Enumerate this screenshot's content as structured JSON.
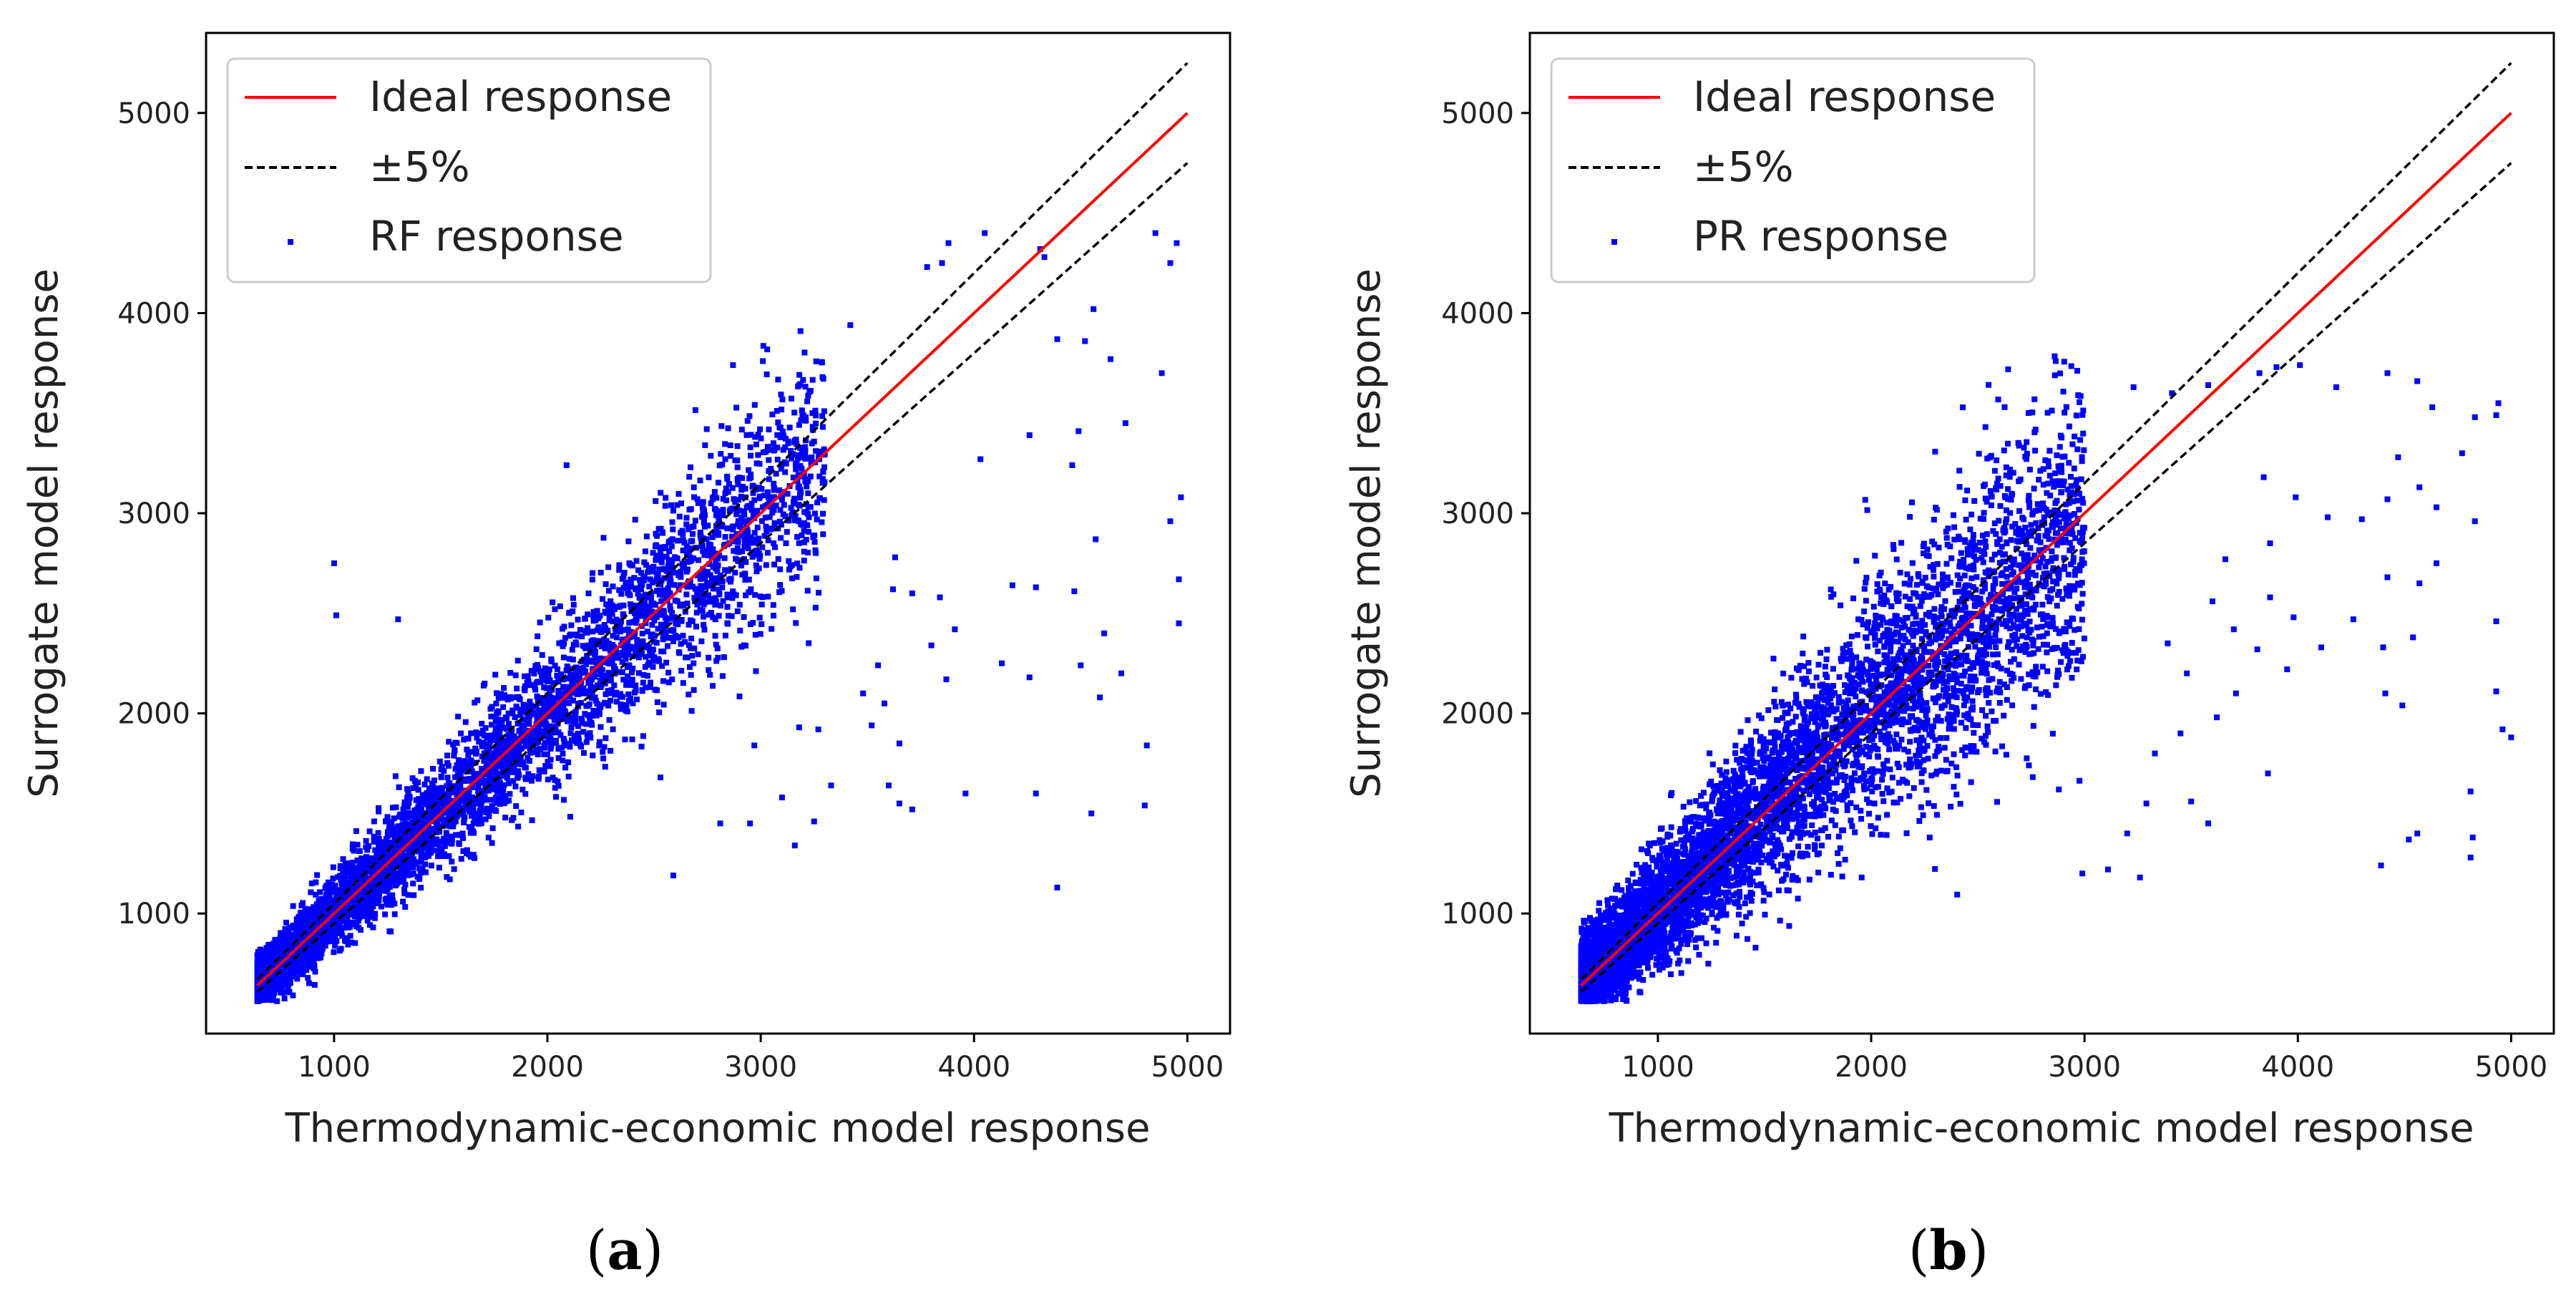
{
  "chart_data": [
    {
      "type": "scatter",
      "panel_label": "a",
      "xlabel": "Thermodynamic-economic model response",
      "ylabel": "Surrogate model response",
      "xlim": [
        400,
        5200
      ],
      "ylim": [
        400,
        5400
      ],
      "xticks": [
        1000,
        2000,
        3000,
        4000,
        5000
      ],
      "yticks": [
        1000,
        2000,
        3000,
        4000,
        5000
      ],
      "grid": false,
      "legend_position": "top-left",
      "legend": [
        "Ideal response",
        "±5%",
        "RF response"
      ],
      "series": [
        {
          "name": "Ideal response",
          "kind": "line",
          "color": "#ff0000",
          "points": [
            [
              640,
              640
            ],
            [
              5000,
              5000
            ]
          ]
        },
        {
          "name": "±5%",
          "kind": "dashed-line",
          "color": "#000000",
          "points": [
            [
              640,
              672
            ],
            [
              5000,
              5250
            ]
          ]
        },
        {
          "name": "±5% lower",
          "kind": "dashed-line",
          "color": "#000000",
          "points": [
            [
              640,
              608
            ],
            [
              5000,
              4750
            ]
          ]
        },
        {
          "name": "RF response",
          "kind": "scatter",
          "color": "#0000ff",
          "cloud": {
            "count": 5200,
            "x_min": 640,
            "x_core_max": 3300,
            "spread_frac": 0.09
          },
          "points": [
            [
              1000,
              2750
            ],
            [
              1010,
              2490
            ],
            [
              1300,
              2470
            ],
            [
              2090,
              3240
            ],
            [
              3010,
              3760
            ],
            [
              2870,
              3740
            ],
            [
              3180,
              3640
            ],
            [
              3420,
              3940
            ],
            [
              3850,
              4250
            ],
            [
              3780,
              4230
            ],
            [
              3880,
              4350
            ],
            [
              4050,
              4400
            ],
            [
              4330,
              4280
            ],
            [
              4310,
              4320
            ],
            [
              4850,
              4400
            ],
            [
              4950,
              4350
            ],
            [
              4920,
              4250
            ],
            [
              4520,
              3860
            ],
            [
              4640,
              3770
            ],
            [
              4560,
              4020
            ],
            [
              4390,
              3870
            ],
            [
              4880,
              3700
            ],
            [
              4710,
              3450
            ],
            [
              4490,
              3410
            ],
            [
              4460,
              3240
            ],
            [
              4030,
              3270
            ],
            [
              4260,
              3390
            ],
            [
              4970,
              3080
            ],
            [
              4920,
              2960
            ],
            [
              4960,
              2670
            ],
            [
              4960,
              2450
            ],
            [
              4570,
              2870
            ],
            [
              4470,
              2610
            ],
            [
              4290,
              2630
            ],
            [
              4610,
              2400
            ],
            [
              4590,
              2080
            ],
            [
              4690,
              2200
            ],
            [
              4500,
              2240
            ],
            [
              4260,
              2180
            ],
            [
              4130,
              2250
            ],
            [
              3870,
              2170
            ],
            [
              3910,
              2420
            ],
            [
              3840,
              2580
            ],
            [
              3710,
              2600
            ],
            [
              3630,
              2780
            ],
            [
              3620,
              2620
            ],
            [
              3550,
              2240
            ],
            [
              3580,
              2050
            ],
            [
              3650,
              1850
            ],
            [
              3600,
              1640
            ],
            [
              3650,
              1550
            ],
            [
              3710,
              1520
            ],
            [
              3520,
              1940
            ],
            [
              3480,
              2100
            ],
            [
              3330,
              1640
            ],
            [
              3270,
              1920
            ],
            [
              3180,
              1930
            ],
            [
              3160,
              1340
            ],
            [
              3100,
              1580
            ],
            [
              2970,
              1840
            ],
            [
              2810,
              1450
            ],
            [
              2590,
              1190
            ],
            [
              4390,
              1130
            ],
            [
              4290,
              1600
            ],
            [
              4550,
              1500
            ],
            [
              4810,
              1840
            ],
            [
              4800,
              1540
            ],
            [
              3960,
              1600
            ],
            [
              2950,
              1450
            ],
            [
              2530,
              1680
            ],
            [
              3250,
              1460
            ],
            [
              4180,
              2640
            ],
            [
              3800,
              2340
            ]
          ]
        }
      ]
    },
    {
      "type": "scatter",
      "panel_label": "b",
      "xlabel": "Thermodynamic-economic model response",
      "ylabel": "Surrogate model response",
      "xlim": [
        400,
        5200
      ],
      "ylim": [
        400,
        5400
      ],
      "xticks": [
        1000,
        2000,
        3000,
        4000,
        5000
      ],
      "yticks": [
        1000,
        2000,
        3000,
        4000,
        5000
      ],
      "grid": false,
      "legend_position": "top-left",
      "legend": [
        "Ideal response",
        "±5%",
        "PR response"
      ],
      "series": [
        {
          "name": "Ideal response",
          "kind": "line",
          "color": "#ff0000",
          "points": [
            [
              640,
              640
            ],
            [
              5000,
              5000
            ]
          ]
        },
        {
          "name": "±5%",
          "kind": "dashed-line",
          "color": "#000000",
          "points": [
            [
              640,
              672
            ],
            [
              5000,
              5250
            ]
          ]
        },
        {
          "name": "±5% lower",
          "kind": "dashed-line",
          "color": "#000000",
          "points": [
            [
              640,
              608
            ],
            [
              5000,
              4750
            ]
          ]
        },
        {
          "name": "PR response",
          "kind": "scatter",
          "color": "#0000ff",
          "cloud": {
            "count": 6500,
            "x_min": 640,
            "x_core_max": 3000,
            "spread_frac": 0.14
          },
          "points": [
            [
              2970,
              3590
            ],
            [
              3230,
              3630
            ],
            [
              3410,
              3600
            ],
            [
              3580,
              3640
            ],
            [
              3900,
              3730
            ],
            [
              3820,
              3700
            ],
            [
              4010,
              3740
            ],
            [
              4180,
              3630
            ],
            [
              4420,
              3700
            ],
            [
              4560,
              3660
            ],
            [
              4940,
              3550
            ],
            [
              4930,
              3490
            ],
            [
              4830,
              3480
            ],
            [
              4630,
              3530
            ],
            [
              4770,
              3300
            ],
            [
              4650,
              3030
            ],
            [
              4470,
              3280
            ],
            [
              4570,
              3130
            ],
            [
              4420,
              3070
            ],
            [
              4300,
              2970
            ],
            [
              4140,
              2980
            ],
            [
              3990,
              3080
            ],
            [
              3840,
              3180
            ],
            [
              3870,
              2850
            ],
            [
              4830,
              2960
            ],
            [
              4650,
              2750
            ],
            [
              4420,
              2680
            ],
            [
              4570,
              2650
            ],
            [
              4260,
              2470
            ],
            [
              4400,
              2330
            ],
            [
              4540,
              2380
            ],
            [
              4110,
              2330
            ],
            [
              3980,
              2480
            ],
            [
              3870,
              2580
            ],
            [
              3810,
              2320
            ],
            [
              3700,
              2420
            ],
            [
              3600,
              2560
            ],
            [
              3710,
              2100
            ],
            [
              3620,
              1980
            ],
            [
              3480,
              2200
            ],
            [
              3390,
              2350
            ],
            [
              3450,
              1900
            ],
            [
              3330,
              1800
            ],
            [
              3290,
              1550
            ],
            [
              3200,
              1400
            ],
            [
              3110,
              1220
            ],
            [
              2990,
              1200
            ],
            [
              3500,
              1560
            ],
            [
              3580,
              1450
            ],
            [
              3860,
              1700
            ],
            [
              4410,
              2100
            ],
            [
              4490,
              2040
            ],
            [
              4520,
              1370
            ],
            [
              4560,
              1400
            ],
            [
              4390,
              1240
            ],
            [
              4810,
              1610
            ],
            [
              4820,
              1380
            ],
            [
              4810,
              1280
            ],
            [
              4960,
              1920
            ],
            [
              5000,
              1880
            ],
            [
              4930,
              2110
            ],
            [
              4930,
              2460
            ],
            [
              3950,
              2220
            ],
            [
              2880,
              1620
            ],
            [
              3260,
              1180
            ],
            [
              3660,
              2770
            ]
          ]
        }
      ]
    }
  ]
}
